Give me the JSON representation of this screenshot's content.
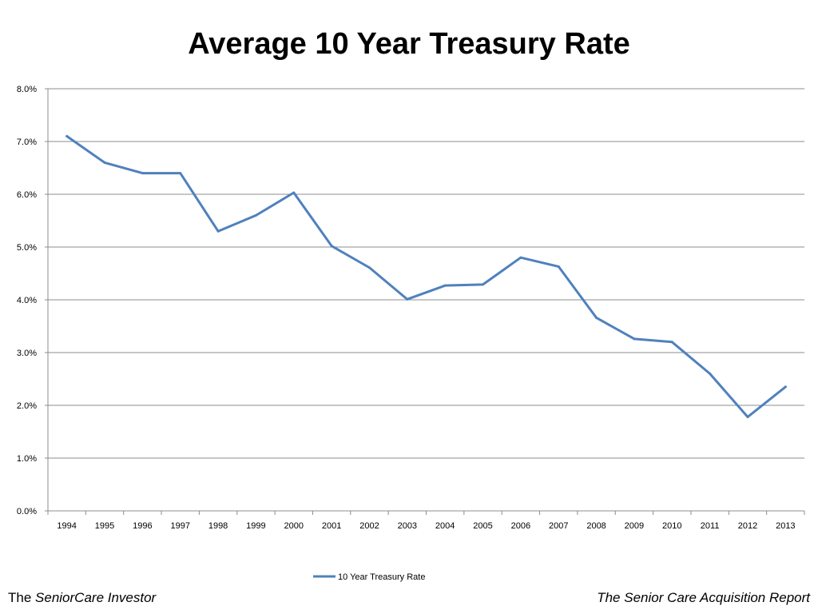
{
  "slide": {
    "title": "Average 10 Year Treasury Rate",
    "footer_left_prefix": "The ",
    "footer_left_name": "SeniorCare Investor",
    "footer_right": "The Senior Care Acquisition Report"
  },
  "chart_data": {
    "type": "line",
    "title": "Average 10 Year Treasury Rate",
    "xlabel": "",
    "ylabel": "",
    "x": [
      "1994",
      "1995",
      "1996",
      "1997",
      "1998",
      "1999",
      "2000",
      "2001",
      "2002",
      "2003",
      "2004",
      "2005",
      "2006",
      "2007",
      "2008",
      "2009",
      "2010",
      "2011",
      "2012",
      "2013"
    ],
    "series": [
      {
        "name": "10 Year Treasury Rate",
        "color": "#4f81bd",
        "values": [
          7.1,
          6.6,
          6.4,
          6.4,
          5.3,
          5.6,
          6.03,
          5.02,
          4.61,
          4.01,
          4.27,
          4.29,
          4.8,
          4.63,
          3.66,
          3.26,
          3.2,
          2.6,
          1.78,
          2.35
        ]
      }
    ],
    "ylim": [
      0,
      8
    ],
    "y_ticks": [
      "0.0%",
      "1.0%",
      "2.0%",
      "3.0%",
      "4.0%",
      "5.0%",
      "6.0%",
      "7.0%",
      "8.0%"
    ],
    "grid": "horizontal",
    "legend_position": "bottom"
  }
}
